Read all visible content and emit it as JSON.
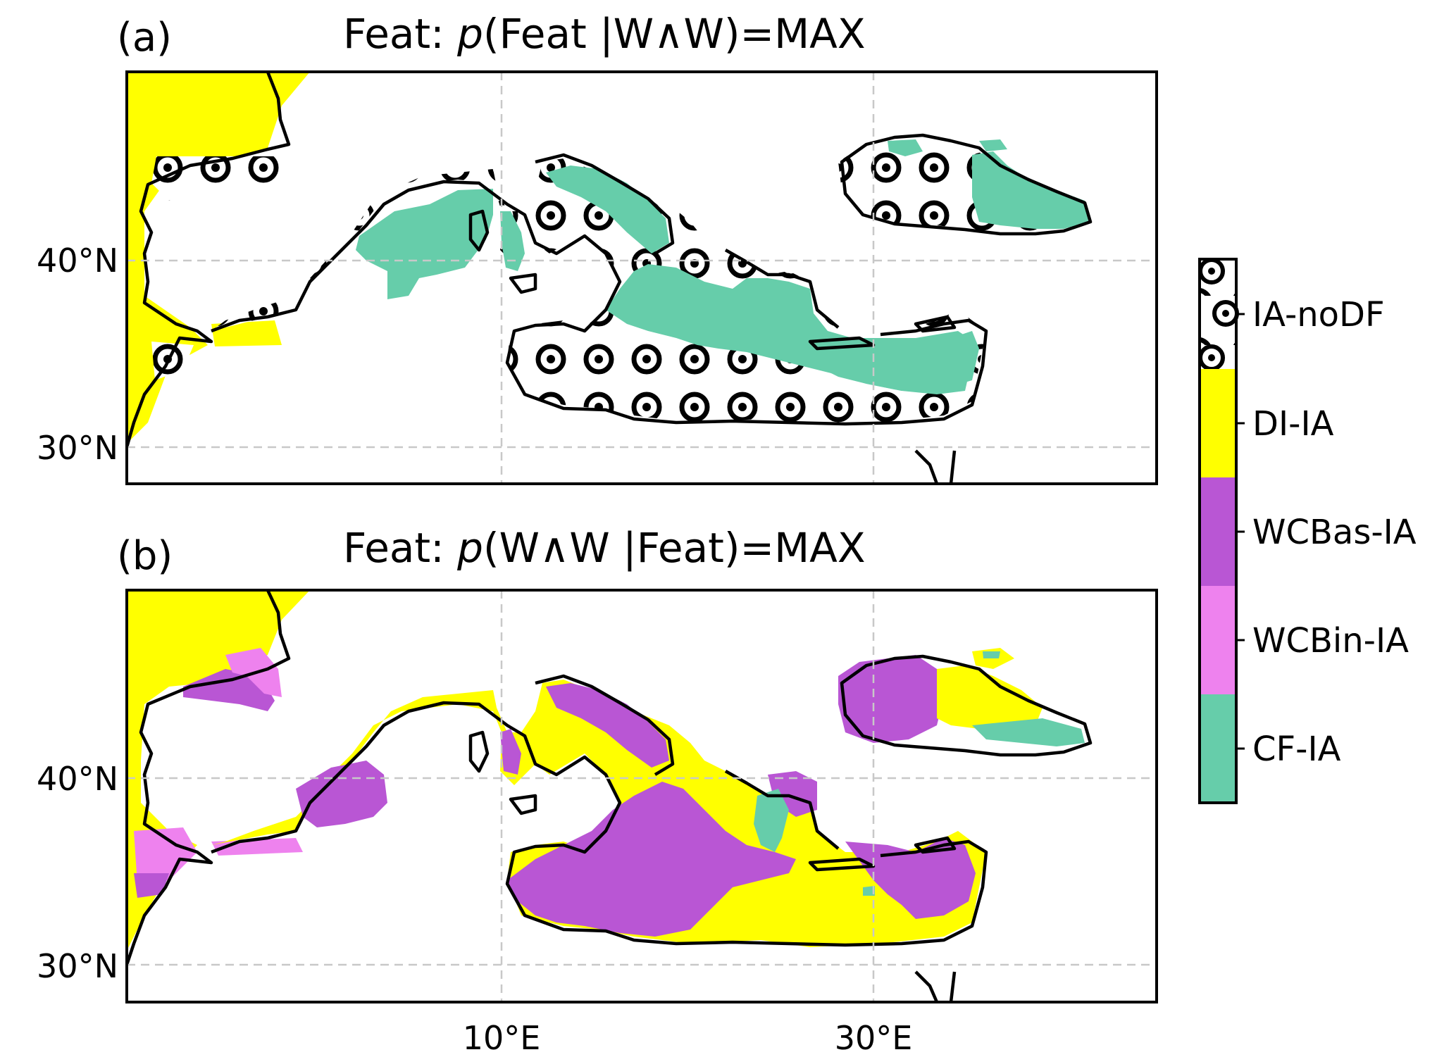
{
  "panels": [
    {
      "id": "a",
      "tag": "(a)",
      "title_prefix": "Feat: ",
      "title_italic": "p",
      "title_suffix": "(Feat |W∧W)=MAX",
      "lat_ticks": [
        "40°N",
        "30°N"
      ]
    },
    {
      "id": "b",
      "tag": "(b)",
      "title_prefix": "Feat: ",
      "title_italic": "p",
      "title_suffix": "(W∧W |Feat)=MAX",
      "lat_ticks": [
        "40°N",
        "30°N"
      ]
    }
  ],
  "lon_ticks": [
    "10°E",
    "30°E"
  ],
  "legend": [
    {
      "label": "IA-noDF",
      "color": "#ffffff",
      "pattern": "bullseye"
    },
    {
      "label": "DI-IA",
      "color": "#ffff00"
    },
    {
      "label": "WCBas-IA",
      "color": "#b956d4"
    },
    {
      "label": "WCBin-IA",
      "color": "#ee82ee"
    },
    {
      "label": "CF-IA",
      "color": "#66cdaa"
    }
  ],
  "colors": {
    "gridline": "#c8c8c8",
    "coast": "#000000"
  }
}
